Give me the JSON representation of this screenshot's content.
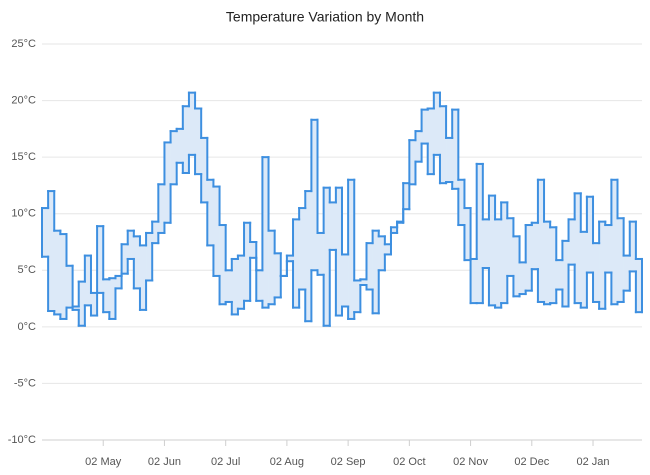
{
  "chart_data": {
    "type": "rangeStepArea",
    "title": "Temperature Variation by Month",
    "categories": [
      null,
      null,
      null,
      null,
      null,
      null,
      null,
      null,
      null,
      null,
      "02 May",
      null,
      null,
      null,
      null,
      null,
      null,
      null,
      null,
      null,
      "02 Jun",
      null,
      null,
      null,
      null,
      null,
      null,
      null,
      null,
      null,
      "02 Jul",
      null,
      null,
      null,
      null,
      null,
      null,
      null,
      null,
      null,
      "02 Aug",
      null,
      null,
      null,
      null,
      null,
      null,
      null,
      null,
      null,
      "02 Sep",
      null,
      null,
      null,
      null,
      null,
      null,
      null,
      null,
      null,
      "02 Oct",
      null,
      null,
      null,
      null,
      null,
      null,
      null,
      null,
      null,
      "02 Nov",
      null,
      null,
      null,
      null,
      null,
      null,
      null,
      null,
      null,
      "02 Dec",
      null,
      null,
      null,
      null,
      null,
      null,
      null,
      null,
      null,
      "02 Jan",
      null,
      null,
      null,
      null,
      null,
      null,
      null
    ],
    "high": [
      10.5,
      12,
      8.5,
      8.2,
      5.4,
      1.8,
      4.0,
      6.3,
      3.0,
      8.9,
      4.2,
      4.3,
      4.5,
      7.3,
      8.5,
      8.0,
      7.2,
      8.3,
      9.3,
      12.6,
      16.3,
      17.3,
      17.5,
      19.5,
      20.7,
      19.3,
      16.7,
      13.0,
      12.4,
      9.0,
      5.0,
      6.0,
      6.3,
      9.2,
      7.5,
      5.0,
      15.0,
      8.5,
      6.5,
      4.5,
      6.3,
      9.5,
      10.5,
      12.0,
      18.3,
      8.3,
      12.3,
      11.0,
      12.3,
      6.4,
      13.0,
      4.1,
      4.2,
      7.4,
      8.5,
      8.0,
      7.3,
      8.8,
      9.3,
      12.7,
      16.5,
      17.3,
      19.2,
      19.3,
      20.7,
      19.5,
      16.7,
      19.2,
      13.0,
      10.5,
      6.0,
      14.4,
      9.5,
      11.6,
      9.5,
      11.0,
      9.6,
      8.0,
      5.7,
      9.0,
      9.2,
      13.0,
      9.3,
      8.8,
      5.9,
      7.6,
      9.5,
      11.8,
      8.4,
      11.5,
      7.4,
      9.3,
      9.0,
      13.0,
      9.6,
      6.3,
      9.3,
      6.0
    ],
    "low": [
      6.2,
      1.4,
      1.1,
      0.7,
      1.7,
      1.5,
      0.1,
      1.9,
      1.0,
      3.0,
      1.3,
      0.7,
      3.4,
      4.7,
      6.0,
      3.4,
      1.5,
      4.1,
      7.4,
      8.3,
      9.2,
      12.6,
      14.5,
      13.6,
      15.2,
      13.5,
      11.0,
      7.2,
      4.5,
      2.0,
      2.2,
      1.1,
      1.6,
      2.3,
      6.1,
      2.3,
      1.7,
      2.0,
      2.6,
      4.5,
      5.8,
      1.7,
      3.3,
      0.5,
      5.0,
      4.6,
      0.1,
      6.8,
      1.0,
      1.8,
      0.7,
      1.3,
      3.7,
      3.3,
      1.2,
      5.0,
      6.4,
      8.3,
      9.2,
      10.4,
      12.6,
      14.6,
      16.2,
      13.5,
      15.2,
      12.7,
      12.8,
      12.2,
      9.0,
      5.9,
      2.1,
      2.1,
      5.2,
      1.9,
      1.7,
      2.1,
      4.5,
      2.7,
      2.9,
      3.2,
      5.1,
      2.2,
      2.0,
      2.1,
      3.3,
      1.8,
      5.5,
      2.1,
      1.7,
      4.8,
      2.2,
      1.6,
      4.8,
      2.0,
      2.2,
      3.2,
      4.9,
      1.3
    ],
    "color": "#3d8fe0",
    "fill": "#dce9f8",
    "ylim": [
      -10,
      25
    ],
    "yticks": [
      {
        "value": -10,
        "label": "-10°C"
      },
      {
        "value": -5,
        "label": "-5°C"
      },
      {
        "value": 0,
        "label": "0°C"
      },
      {
        "value": 5,
        "label": "5°C"
      },
      {
        "value": 10,
        "label": "10°C"
      },
      {
        "value": 15,
        "label": "15°C"
      },
      {
        "value": 20,
        "label": "20°C"
      },
      {
        "value": 25,
        "label": "25°C"
      }
    ],
    "grid": true
  }
}
